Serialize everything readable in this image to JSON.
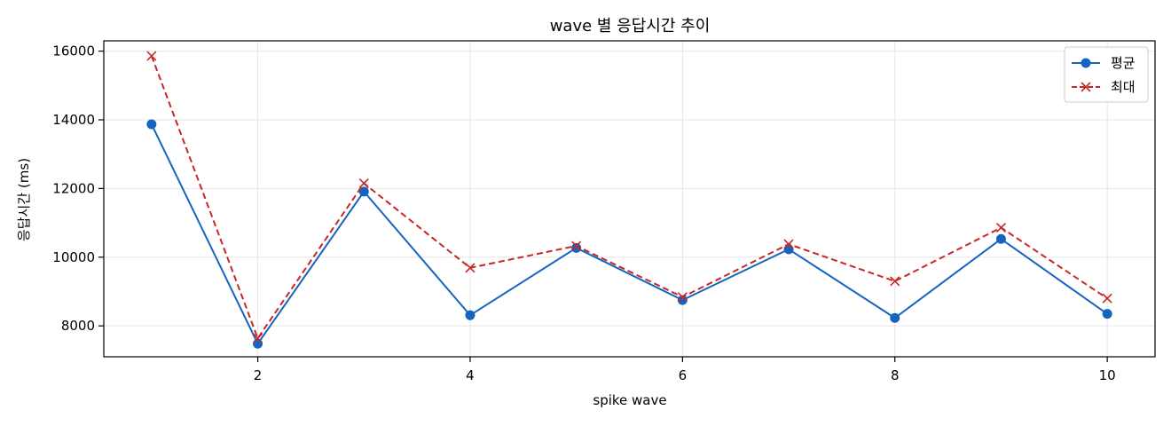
{
  "chart_data": {
    "type": "line",
    "title": "wave 별 응답시간 추이",
    "xlabel": "spike wave",
    "ylabel": "응답시간 (ms)",
    "x": [
      1,
      2,
      3,
      4,
      5,
      6,
      7,
      8,
      9,
      10
    ],
    "xlim": [
      0.55,
      10.45
    ],
    "ylim": [
      7100,
      16300
    ],
    "x_ticks": [
      2,
      4,
      6,
      8,
      10
    ],
    "y_ticks": [
      8000,
      10000,
      12000,
      14000,
      16000
    ],
    "grid": true,
    "legend_position": "top-right",
    "series": [
      {
        "name": "평균",
        "color": "#1565c0",
        "marker": "circle",
        "line_style": "solid",
        "values": [
          13870,
          7480,
          11910,
          8310,
          10270,
          8750,
          10230,
          8230,
          10530,
          8350
        ]
      },
      {
        "name": "최대",
        "color": "#c62828",
        "marker": "x",
        "line_style": "dashed",
        "values": [
          15860,
          7640,
          12150,
          9690,
          10330,
          8840,
          10380,
          9300,
          10860,
          8800
        ]
      }
    ]
  }
}
